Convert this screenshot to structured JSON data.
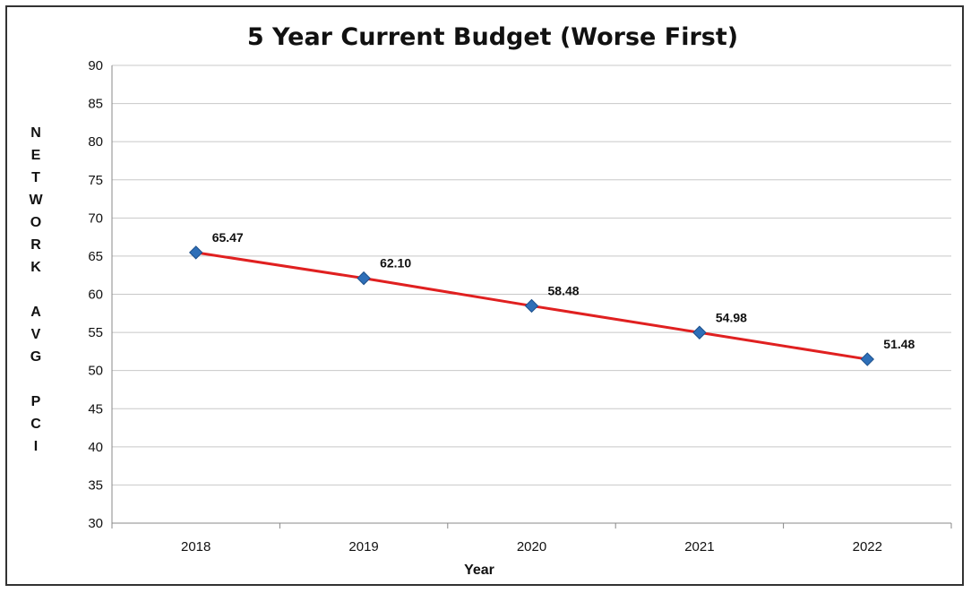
{
  "chart_data": {
    "type": "line",
    "title": "5 Year Current Budget (Worse First)",
    "xlabel": "Year",
    "ylabel": "NETWORK AVG PCI",
    "ylabel_lines": [
      "N",
      "E",
      "T",
      "W",
      "O",
      "R",
      "K",
      "",
      "A",
      "V",
      "G",
      "",
      "P",
      "C",
      "I"
    ],
    "categories": [
      "2018",
      "2019",
      "2020",
      "2021",
      "2022"
    ],
    "series": [
      {
        "values": [
          65.47,
          62.1,
          58.48,
          54.98,
          51.48
        ],
        "data_labels": [
          "65.47",
          "62.10",
          "58.48",
          "54.98",
          "51.48"
        ],
        "line_color": "#e02020",
        "marker_color": "#2e6fb8",
        "marker": "diamond"
      }
    ],
    "ylim": [
      30,
      90
    ],
    "yticks": [
      30,
      35,
      40,
      45,
      50,
      55,
      60,
      65,
      70,
      75,
      80,
      85,
      90
    ],
    "grid": true,
    "legend": "none"
  },
  "colors": {
    "grid": "#c8c8c8",
    "axis": "#888888",
    "frame": "#333333"
  }
}
